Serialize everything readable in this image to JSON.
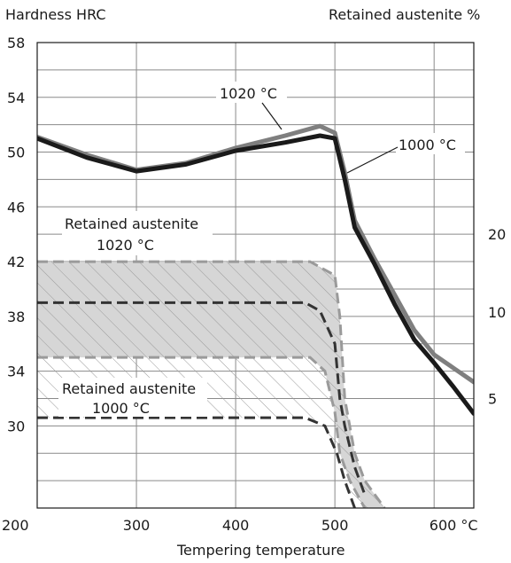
{
  "chart_data": {
    "type": "line",
    "title": "",
    "ylabel_left": "Hardness HRC",
    "ylabel_right": "Retained austenite %",
    "xlabel": "Tempering temperature",
    "xlim": [
      200,
      640
    ],
    "ylim_left": [
      24,
      58
    ],
    "x_ticks": [
      {
        "value": 200,
        "label": "200"
      },
      {
        "value": 300,
        "label": "300"
      },
      {
        "value": 400,
        "label": "400"
      },
      {
        "value": 500,
        "label": "500"
      },
      {
        "value": 600,
        "label": "600 °C"
      }
    ],
    "y_ticks_left": [
      {
        "value": 58,
        "label": "58"
      },
      {
        "value": 54,
        "label": "54"
      },
      {
        "value": 50,
        "label": "50"
      },
      {
        "value": 46,
        "label": "46"
      },
      {
        "value": 42,
        "label": "42"
      },
      {
        "value": 38,
        "label": "38"
      },
      {
        "value": 34,
        "label": "34"
      },
      {
        "value": 30,
        "label": "30"
      }
    ],
    "y_ticks_right": [
      {
        "value": 20,
        "at_hrc": 44.0,
        "label": "20"
      },
      {
        "value": 10,
        "at_hrc": 38.3,
        "label": "10"
      },
      {
        "value": 5,
        "at_hrc": 32.0,
        "label": "5"
      }
    ],
    "hardness_series": [
      {
        "name": "1020 °C",
        "color": "#7f7f7f",
        "points": [
          [
            200,
            51.1
          ],
          [
            250,
            49.8
          ],
          [
            300,
            48.7
          ],
          [
            350,
            49.2
          ],
          [
            400,
            50.3
          ],
          [
            450,
            51.2
          ],
          [
            485,
            51.9
          ],
          [
            500,
            51.4
          ],
          [
            510,
            48.5
          ],
          [
            520,
            45.0
          ],
          [
            540,
            42.2
          ],
          [
            560,
            39.6
          ],
          [
            580,
            37.0
          ],
          [
            600,
            35.2
          ],
          [
            620,
            34.2
          ],
          [
            640,
            33.2
          ]
        ]
      },
      {
        "name": "1000 °C",
        "color": "#1a1a1a",
        "points": [
          [
            200,
            51.0
          ],
          [
            250,
            49.6
          ],
          [
            300,
            48.6
          ],
          [
            350,
            49.1
          ],
          [
            400,
            50.1
          ],
          [
            450,
            50.7
          ],
          [
            485,
            51.2
          ],
          [
            500,
            51.0
          ],
          [
            510,
            48.0
          ],
          [
            520,
            44.5
          ],
          [
            540,
            41.8
          ],
          [
            560,
            38.9
          ],
          [
            580,
            36.3
          ],
          [
            600,
            34.6
          ],
          [
            620,
            32.8
          ],
          [
            640,
            30.9
          ]
        ]
      }
    ],
    "retained_austenite_bands": [
      {
        "name": "Retained austenite 1020 °C",
        "color": "#9a9a9a",
        "upper": [
          [
            200,
            42.0
          ],
          [
            475,
            42.0
          ],
          [
            500,
            41.0
          ],
          [
            505,
            38.0
          ],
          [
            510,
            32.0
          ],
          [
            520,
            28.0
          ],
          [
            530,
            26.0
          ],
          [
            550,
            24.0
          ]
        ],
        "lower": [
          [
            200,
            35.0
          ],
          [
            475,
            35.0
          ],
          [
            490,
            34.0
          ],
          [
            500,
            31.0
          ],
          [
            505,
            28.0
          ],
          [
            515,
            26.0
          ],
          [
            530,
            24.0
          ]
        ],
        "fill": "#d6d6d6"
      },
      {
        "name": "Retained austenite 1000 °C",
        "color": "#333333",
        "upper": [
          [
            200,
            39.0
          ],
          [
            470,
            39.0
          ],
          [
            485,
            38.4
          ],
          [
            500,
            36.0
          ],
          [
            505,
            32.0
          ],
          [
            510,
            30.0
          ],
          [
            520,
            27.0
          ],
          [
            530,
            25.0
          ]
        ],
        "lower": [
          [
            200,
            30.6
          ],
          [
            470,
            30.6
          ],
          [
            490,
            30.0
          ],
          [
            502,
            28.0
          ],
          [
            510,
            26.0
          ],
          [
            520,
            24.0
          ]
        ]
      }
    ],
    "annotations": [
      {
        "text": "1020 °C",
        "series": "1020 °C"
      },
      {
        "text": "1000 °C",
        "series": "1000 °C"
      },
      {
        "text": "Retained austenite",
        "text2": "1020 °C"
      },
      {
        "text": "Retained austenite",
        "text2": "1000 °C"
      }
    ],
    "grid": true
  }
}
